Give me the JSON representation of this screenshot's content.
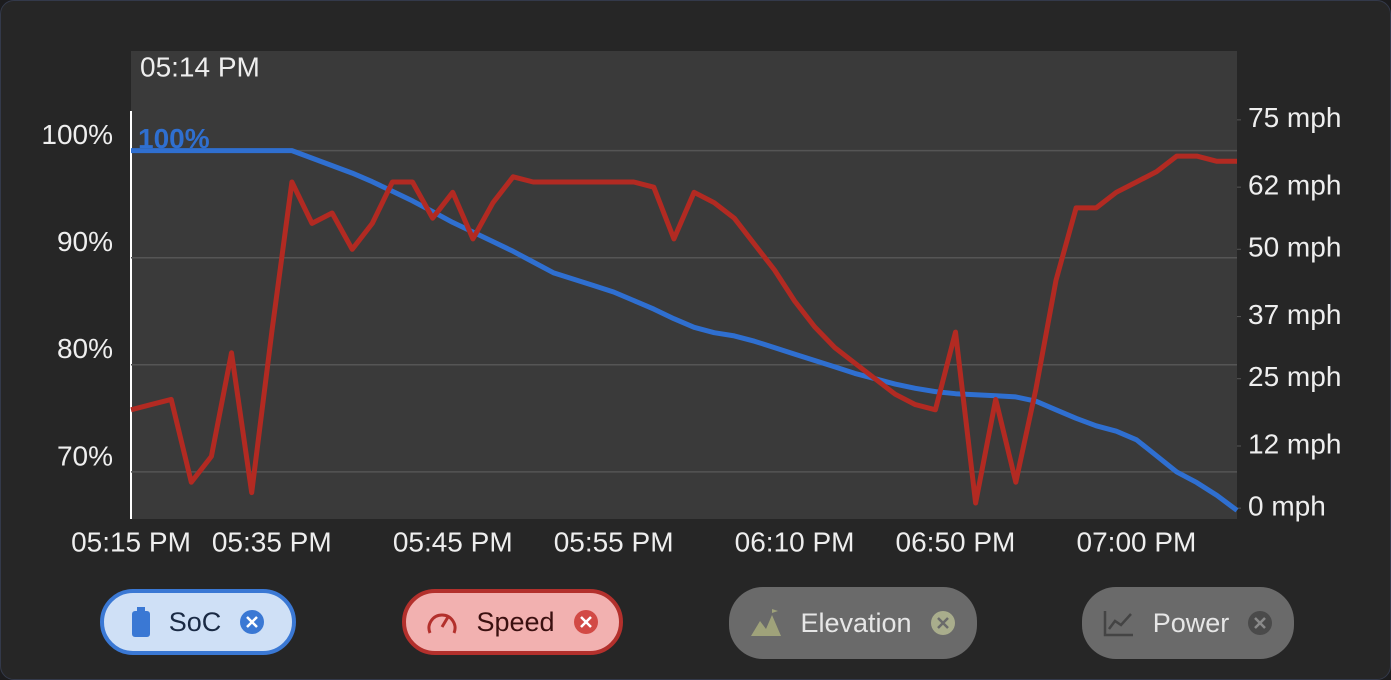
{
  "chart_data": {
    "type": "line",
    "cursor_label": "05:14 PM",
    "start_label": "100%",
    "categories": [
      "05:15 PM",
      null,
      null,
      null,
      null,
      null,
      null,
      "05:35 PM",
      null,
      null,
      null,
      null,
      null,
      null,
      null,
      null,
      "05:45 PM",
      null,
      null,
      null,
      null,
      null,
      null,
      null,
      "05:55 PM",
      null,
      null,
      null,
      null,
      null,
      null,
      null,
      null,
      "06:10 PM",
      null,
      null,
      null,
      null,
      null,
      null,
      null,
      "06:50 PM",
      null,
      null,
      null,
      null,
      null,
      null,
      null,
      null,
      "07:00 PM",
      null,
      null,
      null,
      null,
      null
    ],
    "series": [
      {
        "name": "SoC",
        "color": "#2f6fd0",
        "axis": "y",
        "values": [
          100,
          100,
          100,
          100,
          100,
          100,
          100,
          100,
          100,
          99.3,
          98.6,
          97.9,
          97.1,
          96.2,
          95.3,
          94.3,
          93.3,
          92.4,
          91.5,
          90.6,
          89.6,
          88.6,
          88.0,
          87.4,
          86.8,
          86.0,
          85.2,
          84.3,
          83.5,
          83.0,
          82.7,
          82.2,
          81.6,
          81.0,
          80.4,
          79.8,
          79.2,
          78.7,
          78.2,
          77.8,
          77.5,
          77.3,
          77.2,
          77.1,
          77.0,
          76.6,
          75.8,
          75.0,
          74.3,
          73.8,
          73.0,
          71.5,
          70.0,
          69.0,
          67.8,
          66.4
        ]
      },
      {
        "name": "Speed",
        "color": "#b22a22",
        "axis": "y2",
        "values": [
          19,
          20,
          21,
          5,
          10,
          30,
          3,
          34,
          63,
          55,
          57,
          50,
          55,
          63,
          63,
          56,
          61,
          52,
          59,
          64,
          63,
          63,
          63,
          63,
          63,
          63,
          62,
          52,
          61,
          59,
          56,
          51,
          46,
          40,
          35,
          31,
          28,
          25,
          22,
          20,
          19,
          34,
          1,
          21,
          5,
          23,
          44,
          58,
          58,
          61,
          63,
          65,
          68,
          68,
          67,
          67
        ]
      }
    ],
    "ylim": [
      65.6,
      109.3
    ],
    "yticks": [
      {
        "value": 70,
        "label": "70%"
      },
      {
        "value": 80,
        "label": "80%"
      },
      {
        "value": 90,
        "label": "90%"
      },
      {
        "value": 100,
        "label": "100%"
      }
    ],
    "y2lim": [
      -2.1,
      88.3
    ],
    "y2ticks": [
      {
        "value": 0,
        "label": "0 mph"
      },
      {
        "value": 12,
        "label": "12 mph"
      },
      {
        "value": 25,
        "label": "25 mph"
      },
      {
        "value": 37,
        "label": "37 mph"
      },
      {
        "value": 50,
        "label": "50 mph"
      },
      {
        "value": 62,
        "label": "62 mph"
      },
      {
        "value": 75,
        "label": "75 mph"
      }
    ],
    "grid": true,
    "inactive_series": [
      "Elevation",
      "Power"
    ]
  }
}
